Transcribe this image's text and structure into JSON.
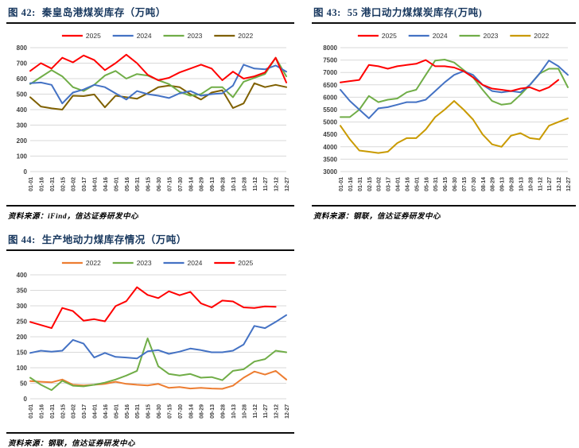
{
  "page": {
    "background": "#FFFFFF"
  },
  "style": {
    "grid_color": "#D9D9D9",
    "axis_text_color": "#404040",
    "title_color": "#17375E",
    "rule_color": "#0D0D0D",
    "series_colors": {
      "red": "#FF0000",
      "blue": "#4472C4",
      "green": "#70AD47",
      "olive": "#7F6000",
      "gold": "#C99A00",
      "orange": "#ED7D31"
    }
  },
  "chart_data": [
    {
      "id": "fig42",
      "type": "line",
      "title_prefix": "图 42:",
      "title": "秦皇岛港煤炭库存（万吨）",
      "source": "资料来源：iFind，信达证券研发中心",
      "xlabel": "",
      "ylabel": "",
      "ylim": [
        0,
        800
      ],
      "ytick_step": 100,
      "grid": true,
      "legend_position": "top",
      "categories": [
        "01-01",
        "01-16",
        "01-31",
        "02-15",
        "03-02",
        "03-17",
        "04-01",
        "04-16",
        "05-01",
        "05-16",
        "05-31",
        "06-15",
        "06-30",
        "07-15",
        "07-30",
        "08-14",
        "08-29",
        "09-13",
        "09-28",
        "10-13",
        "10-28",
        "11-12",
        "11-27",
        "12-12",
        "12-27"
      ],
      "series": [
        {
          "name": "2025",
          "color": "#FF0000",
          "values": [
            650,
            700,
            665,
            735,
            705,
            750,
            720,
            655,
            700,
            755,
            700,
            625,
            590,
            605,
            640,
            665,
            690,
            665,
            590,
            645,
            600,
            615,
            640,
            735,
            575
          ]
        },
        {
          "name": "2024",
          "color": "#4472C4",
          "values": [
            570,
            575,
            560,
            440,
            510,
            530,
            560,
            545,
            505,
            465,
            520,
            500,
            490,
            475,
            505,
            520,
            490,
            500,
            505,
            555,
            690,
            665,
            660,
            685,
            645
          ]
        },
        {
          "name": "2023",
          "color": "#70AD47",
          "values": [
            565,
            610,
            655,
            615,
            545,
            520,
            560,
            620,
            650,
            600,
            630,
            620,
            590,
            565,
            515,
            490,
            500,
            545,
            545,
            480,
            580,
            605,
            630,
            735,
            615
          ]
        },
        {
          "name": "2022",
          "color": "#7F6000",
          "values": [
            480,
            420,
            408,
            400,
            490,
            487,
            498,
            415,
            490,
            480,
            470,
            505,
            545,
            555,
            545,
            500,
            465,
            510,
            525,
            410,
            440,
            570,
            545,
            560,
            545
          ]
        }
      ]
    },
    {
      "id": "fig43",
      "type": "line",
      "title_prefix": "图 43:",
      "title": "55 港口动力煤煤炭库存(万吨)",
      "source": "资料来源：钢联，信达证券研发中心",
      "xlabel": "",
      "ylabel": "",
      "ylim": [
        3000,
        8000
      ],
      "ytick_step": 500,
      "grid": true,
      "legend_position": "top",
      "categories": [
        "01-01",
        "01-16",
        "01-31",
        "02-15",
        "03-02",
        "03-17",
        "04-01",
        "04-16",
        "05-01",
        "05-16",
        "05-31",
        "06-15",
        "06-30",
        "07-15",
        "07-30",
        "08-14",
        "08-29",
        "09-13",
        "09-28",
        "10-13",
        "10-28",
        "11-12",
        "11-27",
        "12-12",
        "12-27"
      ],
      "series": [
        {
          "name": "2025",
          "color": "#FF0000",
          "values": [
            6600,
            6650,
            6700,
            7300,
            7250,
            7150,
            7250,
            7300,
            7350,
            7500,
            7250,
            7250,
            7200,
            7050,
            6800,
            6500,
            6350,
            6300,
            6250,
            6350,
            6400,
            6250,
            6400,
            6700,
            null
          ]
        },
        {
          "name": "2024",
          "color": "#4472C4",
          "values": [
            6300,
            5850,
            5500,
            5150,
            5550,
            5600,
            5700,
            5800,
            5800,
            5900,
            6250,
            6600,
            6900,
            7050,
            6900,
            6500,
            6250,
            6200,
            6250,
            6200,
            6500,
            6950,
            7480,
            7250,
            6900
          ]
        },
        {
          "name": "2023",
          "color": "#70AD47",
          "values": [
            5200,
            5200,
            5500,
            6050,
            5800,
            5900,
            5950,
            6200,
            6300,
            6900,
            7480,
            7520,
            7400,
            7100,
            6800,
            6300,
            5850,
            5700,
            5750,
            6100,
            6500,
            6950,
            7150,
            7150,
            6400
          ]
        },
        {
          "name": "2022",
          "color": "#C99A00",
          "values": [
            4850,
            4300,
            3850,
            3800,
            3750,
            3800,
            4150,
            4350,
            4350,
            4700,
            5200,
            5500,
            5850,
            5500,
            5100,
            4500,
            4100,
            4000,
            4450,
            4550,
            4350,
            4300,
            4850,
            5000,
            5150
          ]
        }
      ]
    },
    {
      "id": "fig44",
      "type": "line",
      "title_prefix": "图 44:",
      "title": "生产地动力煤库存情况（万吨）",
      "source": "资料来源：钢联，信达证券研发中心",
      "xlabel": "",
      "ylabel": "",
      "ylim": [
        0,
        400
      ],
      "ytick_step": 50,
      "grid": true,
      "legend_position": "top",
      "categories": [
        "01-01",
        "01-16",
        "01-31",
        "02-15",
        "03-02",
        "03-17",
        "04-01",
        "04-16",
        "05-01",
        "05-16",
        "05-31",
        "06-15",
        "06-30",
        "07-15",
        "07-30",
        "08-14",
        "08-29",
        "09-13",
        "09-28",
        "10-13",
        "10-28",
        "11-12",
        "11-27",
        "12-12",
        "12-27"
      ],
      "series": [
        {
          "name": "2022",
          "color": "#ED7D31",
          "values": [
            57,
            55,
            53,
            62,
            45,
            43,
            45,
            48,
            55,
            48,
            45,
            43,
            48,
            35,
            38,
            33,
            35,
            33,
            32,
            42,
            68,
            88,
            78,
            90,
            62
          ]
        },
        {
          "name": "2023",
          "color": "#70AD47",
          "values": [
            68,
            45,
            28,
            58,
            42,
            40,
            45,
            52,
            62,
            75,
            90,
            195,
            105,
            80,
            75,
            80,
            68,
            70,
            60,
            90,
            95,
            120,
            128,
            155,
            150
          ]
        },
        {
          "name": "2024",
          "color": "#4472C4",
          "values": [
            148,
            155,
            152,
            155,
            190,
            178,
            133,
            148,
            135,
            133,
            130,
            153,
            157,
            145,
            152,
            162,
            157,
            150,
            150,
            155,
            175,
            235,
            228,
            248,
            270
          ]
        },
        {
          "name": "2025",
          "color": "#FF0000",
          "values": [
            248,
            238,
            228,
            293,
            283,
            252,
            257,
            250,
            299,
            315,
            360,
            335,
            325,
            347,
            334,
            345,
            308,
            295,
            317,
            314,
            295,
            293,
            298,
            297,
            null
          ]
        }
      ]
    }
  ]
}
